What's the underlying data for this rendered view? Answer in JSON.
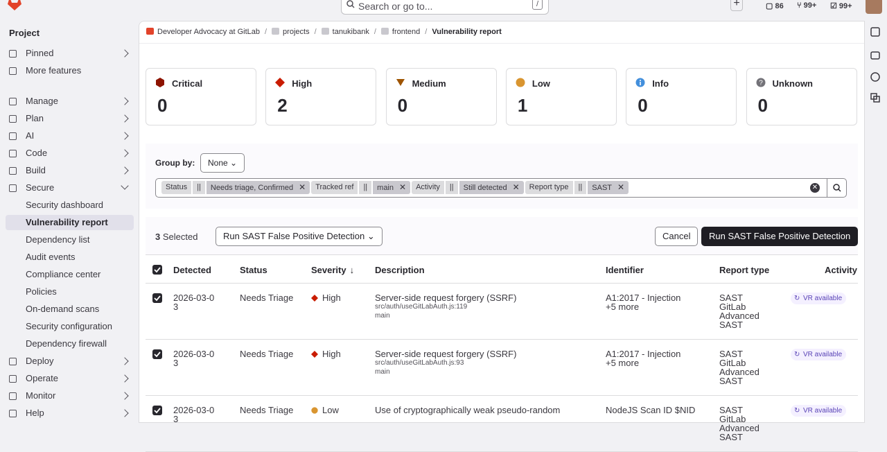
{
  "header": {
    "search": "Search or go to...",
    "shortcut": "/",
    "issues": "86",
    "merge_requests": "99+",
    "todos": "99+"
  },
  "sidebar": {
    "title": "Project",
    "top": [
      "Pinned",
      "More features"
    ],
    "sections": [
      "Manage",
      "Plan",
      "AI",
      "Code",
      "Build"
    ],
    "secure": {
      "label": "Secure",
      "children": [
        "Security dashboard",
        "Vulnerability report",
        "Dependency list",
        "Audit events",
        "Compliance center",
        "Policies",
        "On-demand scans",
        "Security configuration",
        "Dependency firewall"
      ]
    },
    "after": [
      "Deploy",
      "Operate",
      "Monitor",
      "Help"
    ]
  },
  "breadcrumbs": [
    "Developer Advocacy at GitLab",
    "projects",
    "tanukibank",
    "frontend",
    "Vulnerability report"
  ],
  "severity_cards": [
    {
      "label": "Critical",
      "count": 0
    },
    {
      "label": "High",
      "count": 2
    },
    {
      "label": "Medium",
      "count": 0
    },
    {
      "label": "Low",
      "count": 1
    },
    {
      "label": "Info",
      "count": 0
    },
    {
      "label": "Unknown",
      "count": 0
    }
  ],
  "filters": {
    "group_by_label": "Group by:",
    "group_by_value": "None",
    "tokens": [
      {
        "key": "Status",
        "op": "||",
        "value": "Needs triage, Confirmed"
      },
      {
        "key": "Tracked ref",
        "op": "||",
        "value": "main"
      },
      {
        "key": "Activity",
        "op": "||",
        "value": "Still detected"
      },
      {
        "key": "Report type",
        "op": "||",
        "value": "SAST"
      }
    ]
  },
  "bulk": {
    "count": "3",
    "label": "Selected",
    "dropdown": "Run SAST False Positive Detection",
    "cancel": "Cancel",
    "action": "Run SAST False Positive Detection"
  },
  "table": {
    "headers": [
      "Detected",
      "Status",
      "Severity",
      "Description",
      "Identifier",
      "Report type",
      "Activity"
    ],
    "rows": [
      {
        "detected": "2026-03-03",
        "status": "Needs Triage",
        "severity": "High",
        "description": "Server-side request forgery (SSRF)",
        "file": "src/auth/useGitLabAuth.js:119",
        "branch": "main",
        "identifier": "A1:2017 - Injection",
        "more": "+5 more",
        "report_type": "SAST",
        "scanner": "GitLab Advanced SAST",
        "activity": "VR available"
      },
      {
        "detected": "2026-03-03",
        "status": "Needs Triage",
        "severity": "High",
        "description": "Server-side request forgery (SSRF)",
        "file": "src/auth/useGitLabAuth.js:93",
        "branch": "main",
        "identifier": "A1:2017 - Injection",
        "more": "+5 more",
        "report_type": "SAST",
        "scanner": "GitLab Advanced SAST",
        "activity": "VR available"
      },
      {
        "detected": "2026-03-03",
        "status": "Needs Triage",
        "severity": "Low",
        "description": "Use of cryptographically weak pseudo-random",
        "identifier": "NodeJS Scan ID $NID",
        "report_type": "SAST",
        "scanner": "GitLab Advanced SAST",
        "activity": "VR available"
      }
    ]
  }
}
